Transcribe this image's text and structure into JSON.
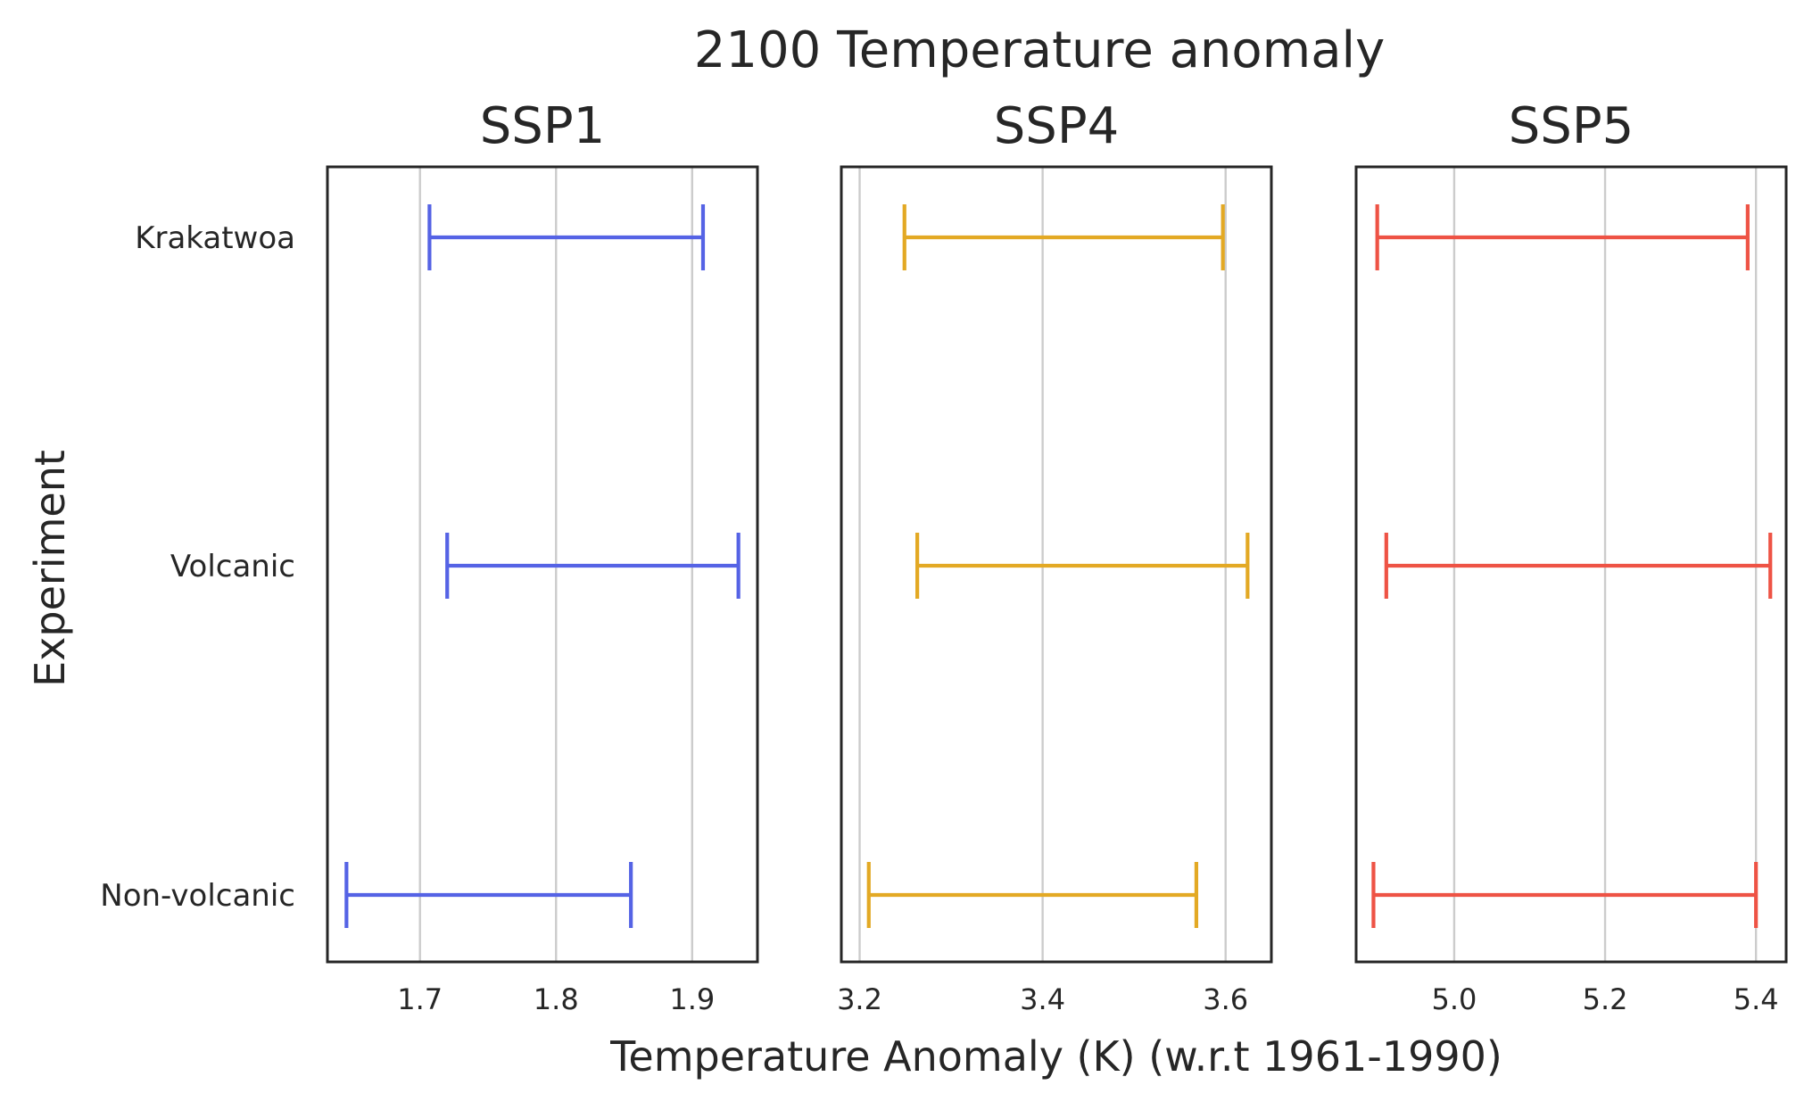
{
  "chart_data": {
    "type": "errorbar",
    "title": "2100 Temperature anomaly",
    "xlabel": "Temperature Anomaly (K) (w.r.t 1961-1990)",
    "ylabel": "Experiment",
    "categories": [
      "Krakatwoa",
      "Volcanic",
      "Non-volcanic"
    ],
    "grid": "x-axis vertical lines",
    "panels": [
      {
        "title": "SSP1",
        "color": "#5563e5",
        "xlim": [
          1.632,
          1.948
        ],
        "xticks": [
          1.7,
          1.8,
          1.9
        ],
        "xtick_labels": [
          "1.7",
          "1.8",
          "1.9"
        ],
        "ranges": [
          {
            "category": "Krakatwoa",
            "low": 1.707,
            "high": 1.908
          },
          {
            "category": "Volcanic",
            "low": 1.72,
            "high": 1.934
          },
          {
            "category": "Non-volcanic",
            "low": 1.646,
            "high": 1.855
          }
        ]
      },
      {
        "title": "SSP4",
        "color": "#e3a924",
        "xlim": [
          3.18,
          3.65
        ],
        "xticks": [
          3.2,
          3.4,
          3.6
        ],
        "xtick_labels": [
          "3.2",
          "3.4",
          "3.6"
        ],
        "ranges": [
          {
            "category": "Krakatwoa",
            "low": 3.249,
            "high": 3.597
          },
          {
            "category": "Volcanic",
            "low": 3.263,
            "high": 3.624
          },
          {
            "category": "Non-volcanic",
            "low": 3.21,
            "high": 3.568
          }
        ]
      },
      {
        "title": "SSP5",
        "color": "#ee5345",
        "xlim": [
          4.87,
          5.44
        ],
        "xticks": [
          5.0,
          5.2,
          5.4
        ],
        "xtick_labels": [
          "5.0",
          "5.2",
          "5.4"
        ],
        "ranges": [
          {
            "category": "Krakatwoa",
            "low": 4.898,
            "high": 5.389
          },
          {
            "category": "Volcanic",
            "low": 4.91,
            "high": 5.419
          },
          {
            "category": "Non-volcanic",
            "low": 4.893,
            "high": 5.4
          }
        ]
      }
    ]
  }
}
